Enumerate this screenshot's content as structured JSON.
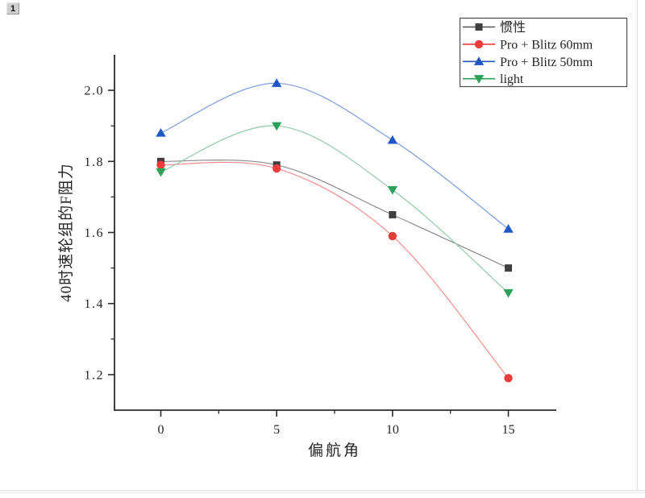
{
  "window": {
    "page_badge": "1"
  },
  "chart_data": {
    "type": "line",
    "title": "",
    "xlabel": "偏航角",
    "ylabel": "40时速轮组的F阻力",
    "x": [
      0,
      5,
      10,
      15
    ],
    "series": [
      {
        "name": "惯性",
        "marker": "square",
        "color": "#3f3f3f",
        "line_color": "#8c8c8c",
        "values": [
          1.8,
          1.79,
          1.65,
          1.5
        ]
      },
      {
        "name": "Pro + Blitz 60mm",
        "marker": "circle",
        "color": "#ee3b3b",
        "line_color": "#f0908d",
        "values": [
          1.79,
          1.78,
          1.59,
          1.19
        ]
      },
      {
        "name": "Pro + Blitz 50mm",
        "marker": "triangle-up",
        "color": "#2057c5",
        "line_color": "#7d9ce0",
        "values": [
          1.88,
          2.02,
          1.86,
          1.61
        ]
      },
      {
        "name": "light",
        "marker": "triangle-down",
        "color": "#2ba15a",
        "line_color": "#8fcaa5",
        "values": [
          1.77,
          1.9,
          1.72,
          1.43
        ]
      }
    ],
    "xlim": [
      -2,
      17
    ],
    "ylim": [
      1.1,
      2.1
    ],
    "x_ticks": {
      "major": [
        0,
        5,
        10,
        15
      ],
      "minor": [
        2.5,
        7.5,
        12.5
      ],
      "labels": [
        "0",
        "5",
        "10",
        "15"
      ]
    },
    "y_ticks": {
      "major": [
        1.2,
        1.4,
        1.6,
        1.8,
        2.0
      ],
      "minor": [
        1.3,
        1.5,
        1.7,
        1.9
      ],
      "labels": [
        "1.2",
        "1.4",
        "1.6",
        "1.8",
        "2.0"
      ]
    },
    "grid": false,
    "curve": "smooth",
    "legend_position": "top-right",
    "axis_color": "#2b2b2b"
  }
}
